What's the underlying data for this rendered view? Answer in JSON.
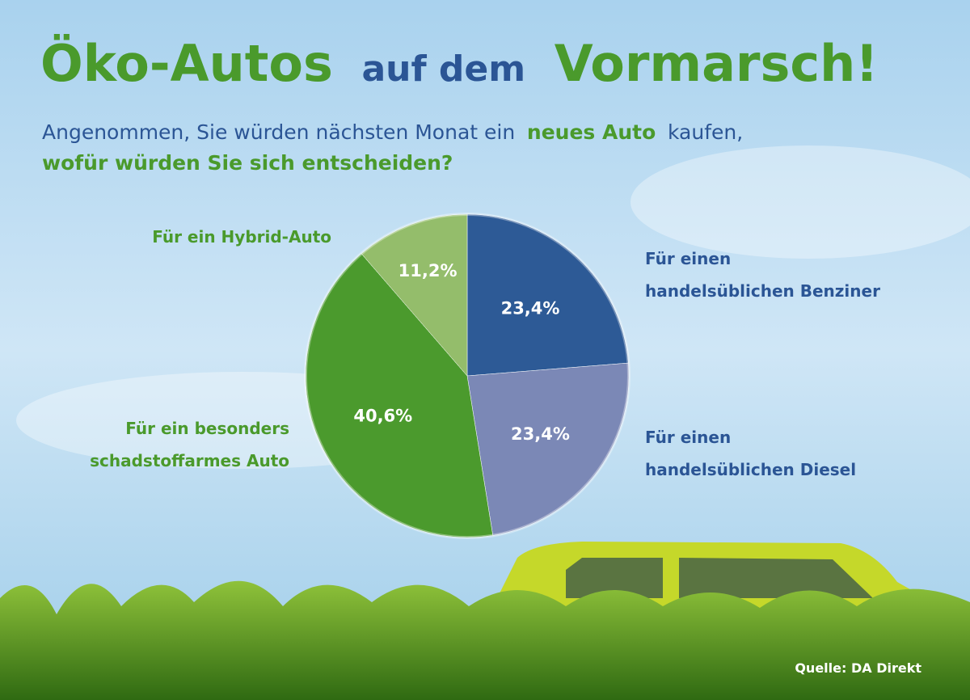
{
  "chart_data": {
    "type": "pie",
    "title_parts": [
      "Öko-Autos",
      "auf dem",
      "Vormarsch!"
    ],
    "subtitle_parts": [
      "Angenommen, Sie würden nächsten Monat ein",
      "neues Auto",
      "kaufen,",
      "wofür würden Sie sich entscheiden?"
    ],
    "categories": [
      [
        "Für einen",
        "handelsüblichen Benziner"
      ],
      [
        "Für einen",
        "handelsüblichen Diesel"
      ],
      [
        "Für ein besonders",
        "schadstoffarmes Auto"
      ],
      [
        "Für ein Hybrid-Auto"
      ]
    ],
    "values": [
      23.4,
      23.4,
      40.6,
      11.2
    ],
    "value_labels": [
      "23,4%",
      "23,4%",
      "40,6%",
      "11,2%"
    ],
    "colors": [
      "#2d5a96",
      "#7b88b6",
      "#4b9a2d",
      "#94bd6b"
    ],
    "label_colors": [
      "#2b5595",
      "#2b5595",
      "#4a9a2c",
      "#4a9a2c"
    ],
    "source": "Quelle: DA Direkt"
  }
}
